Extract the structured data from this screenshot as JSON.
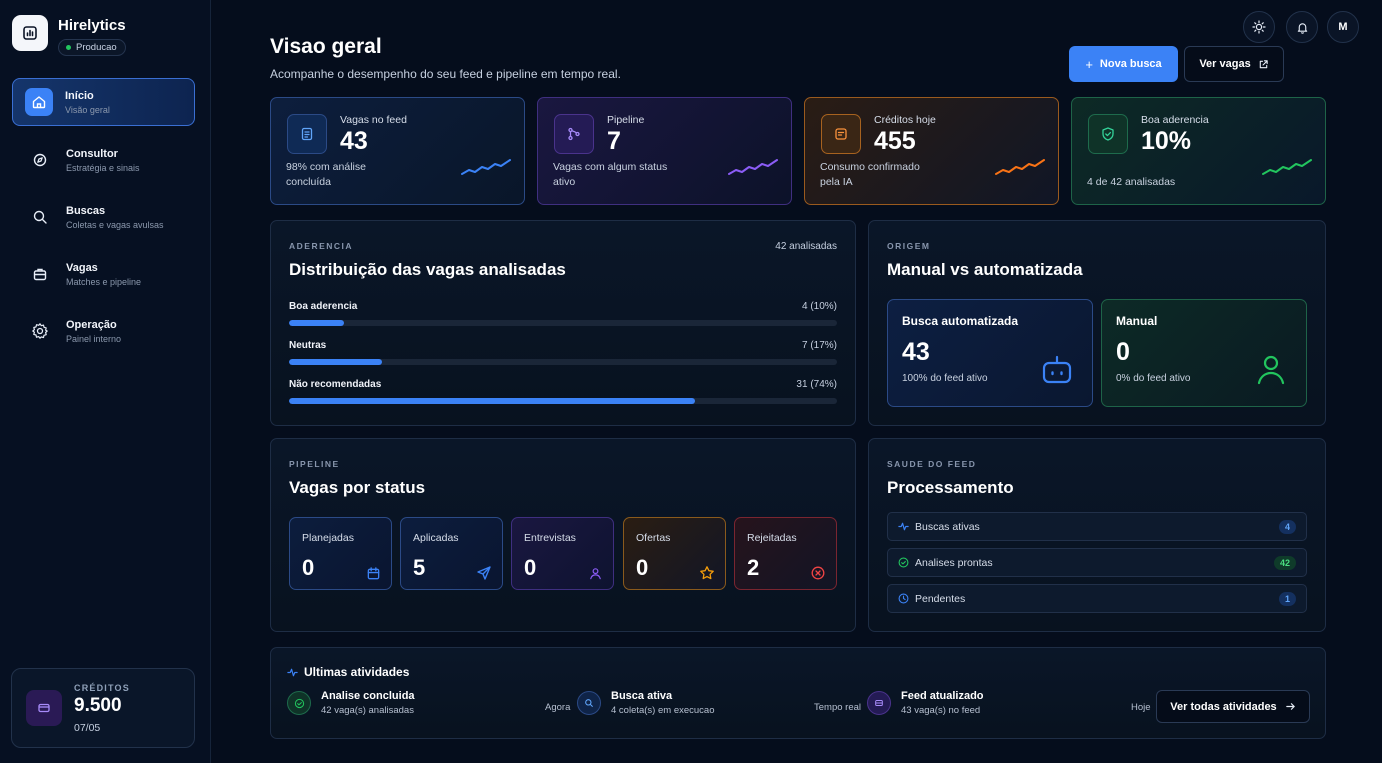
{
  "brand": {
    "name": "Hirelytics",
    "env": "Producao"
  },
  "nav": [
    {
      "title": "Início",
      "sub": "Visão geral"
    },
    {
      "title": "Consultor",
      "sub": "Estratégia e sinais"
    },
    {
      "title": "Buscas",
      "sub": "Coletas e vagas avulsas"
    },
    {
      "title": "Vagas",
      "sub": "Matches e pipeline"
    },
    {
      "title": "Operação",
      "sub": "Painel interno"
    }
  ],
  "credits": {
    "label": "CRÉDITOS",
    "value": "9.500",
    "date": "07/05"
  },
  "topbar": {
    "avatar": "M"
  },
  "header": {
    "title": "Visao geral",
    "subtitle": "Acompanhe o desempenho do seu feed e pipeline em tempo real.",
    "primary_btn": "Nova busca",
    "secondary_btn": "Ver vagas"
  },
  "kpis": [
    {
      "label": "Vagas no feed",
      "value": "43",
      "desc": "98% com análise concluída",
      "color": "#3b82f6"
    },
    {
      "label": "Pipeline",
      "value": "7",
      "desc": "Vagas com algum status ativo",
      "color": "#8b5cf6"
    },
    {
      "label": "Créditos hoje",
      "value": "455",
      "desc": "Consumo confirmado pela IA",
      "color": "#f97316"
    },
    {
      "label": "Boa aderencia",
      "value": "10%",
      "desc": "4 de 42 analisadas",
      "color": "#22c55e"
    }
  ],
  "distribution": {
    "eyebrow": "ADERENCIA",
    "title": "Distribuição das vagas analisadas",
    "count": "42 analisadas",
    "bars": [
      {
        "name": "Boa aderencia",
        "value": "4 (10%)",
        "fraction": 0.1
      },
      {
        "name": "Neutras",
        "value": "7 (17%)",
        "fraction": 0.17
      },
      {
        "name": "Não recomendadas",
        "value": "31 (74%)",
        "fraction": 0.74
      }
    ]
  },
  "origin": {
    "eyebrow": "ORIGEM",
    "title": "Manual vs automatizada",
    "auto": {
      "title": "Busca automatizada",
      "value": "43",
      "desc": "100% do feed ativo"
    },
    "manual": {
      "title": "Manual",
      "value": "0",
      "desc": "0% do feed ativo"
    }
  },
  "pipeline": {
    "eyebrow": "PIPELINE",
    "title": "Vagas por status",
    "statuses": [
      {
        "label": "Planejadas",
        "value": "0",
        "color": "#3b82f6"
      },
      {
        "label": "Aplicadas",
        "value": "5",
        "color": "#3b82f6"
      },
      {
        "label": "Entrevistas",
        "value": "0",
        "color": "#8b5cf6"
      },
      {
        "label": "Ofertas",
        "value": "0",
        "color": "#f59e0b"
      },
      {
        "label": "Rejeitadas",
        "value": "2",
        "color": "#ef4444"
      }
    ]
  },
  "feed_health": {
    "eyebrow": "SAUDE DO FEED",
    "title": "Processamento",
    "rows": [
      {
        "label": "Buscas ativas",
        "badge": "4"
      },
      {
        "label": "Analises prontas",
        "badge": "42"
      },
      {
        "label": "Pendentes",
        "badge": "1"
      }
    ]
  },
  "activity": {
    "title": "Ultimas atividades",
    "items": [
      {
        "title": "Analise concluida",
        "sub": "42 vaga(s) analisadas",
        "time": "Agora"
      },
      {
        "title": "Busca ativa",
        "sub": "4 coleta(s) em execucao",
        "time": "Tempo real"
      },
      {
        "title": "Feed atualizado",
        "sub": "43 vaga(s) no feed",
        "time": "Hoje"
      }
    ],
    "button": "Ver todas atividades"
  }
}
